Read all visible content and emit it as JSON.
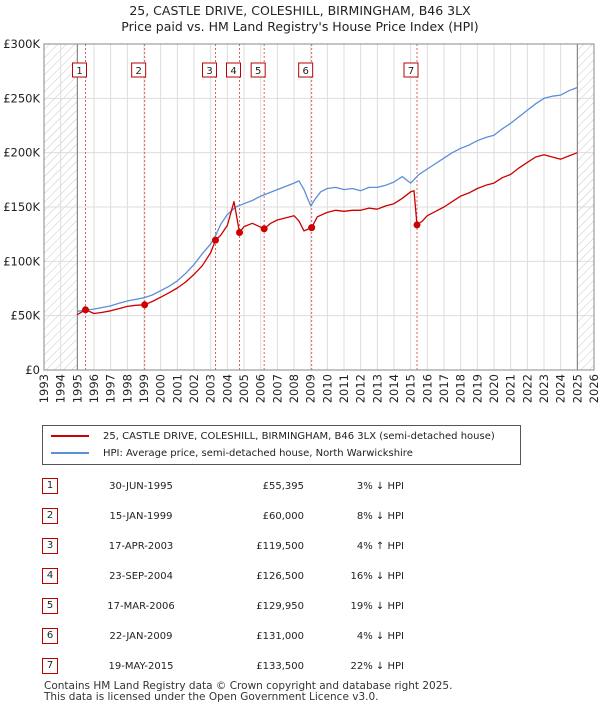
{
  "title_line1": "25, CASTLE DRIVE, COLESHILL, BIRMINGHAM, B46 3LX",
  "title_line2": "Price paid vs. HM Land Registry's House Price Index (HPI)",
  "legend": {
    "property": "25, CASTLE DRIVE, COLESHILL, BIRMINGHAM, B46 3LX (semi-detached house)",
    "hpi": "HPI: Average price, semi-detached house, North Warwickshire"
  },
  "colors": {
    "property": "#cc0000",
    "hpi": "#5b8fd6",
    "grid": "#dddddd",
    "shade": "#eef2f8"
  },
  "sales": [
    {
      "num": "1",
      "date": "30-JUN-1995",
      "price": "£55,395",
      "hpi": "3% ↓ HPI"
    },
    {
      "num": "2",
      "date": "15-JAN-1999",
      "price": "£60,000",
      "hpi": "8% ↓ HPI"
    },
    {
      "num": "3",
      "date": "17-APR-2003",
      "price": "£119,500",
      "hpi": "4% ↑ HPI"
    },
    {
      "num": "4",
      "date": "23-SEP-2004",
      "price": "£126,500",
      "hpi": "16% ↓ HPI"
    },
    {
      "num": "5",
      "date": "17-MAR-2006",
      "price": "£129,950",
      "hpi": "19% ↓ HPI"
    },
    {
      "num": "6",
      "date": "22-JAN-2009",
      "price": "£131,000",
      "hpi": "4% ↓ HPI"
    },
    {
      "num": "7",
      "date": "19-MAY-2015",
      "price": "£133,500",
      "hpi": "22% ↓ HPI"
    }
  ],
  "footer_line1": "Contains HM Land Registry data © Crown copyright and database right 2025.",
  "footer_line2": "This data is licensed under the Open Government Licence v3.0.",
  "chart_data": {
    "type": "line",
    "title": "Price paid vs. HM Land Registry's House Price Index (HPI)",
    "xlim": [
      1993,
      2026
    ],
    "ylim": [
      0,
      300000
    ],
    "x_ticks": [
      1993,
      1994,
      1995,
      1996,
      1997,
      1998,
      1999,
      2000,
      2001,
      2002,
      2003,
      2004,
      2005,
      2006,
      2007,
      2008,
      2009,
      2010,
      2011,
      2012,
      2013,
      2014,
      2015,
      2016,
      2017,
      2018,
      2019,
      2020,
      2021,
      2022,
      2023,
      2024,
      2025,
      2026
    ],
    "y_ticks": [
      0,
      50000,
      100000,
      150000,
      200000,
      250000,
      300000
    ],
    "y_tick_labels": [
      "£0",
      "£50K",
      "£100K",
      "£150K",
      "£200K",
      "£250K",
      "£300K"
    ],
    "shaded_before": 1995.0,
    "shaded_after": 2025.0,
    "series": [
      {
        "name": "HPI: Average price, semi-detached house, North Warwickshire",
        "color": "#5b8fd6",
        "x": [
          1995.0,
          1995.5,
          1996.0,
          1996.5,
          1997.0,
          1997.5,
          1998.0,
          1998.5,
          1999.0,
          1999.5,
          2000.0,
          2000.5,
          2001.0,
          2001.5,
          2002.0,
          2002.5,
          2003.0,
          2003.3,
          2003.6,
          2004.0,
          2004.5,
          2005.0,
          2005.5,
          2006.0,
          2006.5,
          2007.0,
          2007.5,
          2008.0,
          2008.3,
          2008.6,
          2009.0,
          2009.3,
          2009.6,
          2010.0,
          2010.5,
          2011.0,
          2011.5,
          2012.0,
          2012.5,
          2013.0,
          2013.5,
          2014.0,
          2014.5,
          2015.0,
          2015.5,
          2016.0,
          2016.5,
          2017.0,
          2017.5,
          2018.0,
          2018.5,
          2019.0,
          2019.5,
          2020.0,
          2020.5,
          2021.0,
          2021.5,
          2022.0,
          2022.5,
          2023.0,
          2023.5,
          2024.0,
          2024.5,
          2025.0
        ],
        "values": [
          54000,
          55000,
          56000,
          57500,
          59000,
          61500,
          63500,
          65000,
          66500,
          69000,
          73000,
          77000,
          82000,
          89000,
          97000,
          107000,
          116000,
          124000,
          134000,
          143000,
          150000,
          153000,
          156000,
          160000,
          163000,
          166000,
          169000,
          172000,
          174000,
          166000,
          151000,
          158000,
          164000,
          167000,
          168000,
          166000,
          167000,
          165000,
          168000,
          168000,
          170000,
          173000,
          178000,
          172000,
          180000,
          185000,
          190000,
          195000,
          200000,
          204000,
          207000,
          211000,
          214000,
          216000,
          222000,
          227000,
          233000,
          239000,
          245000,
          250000,
          252000,
          253000,
          257000,
          260000
        ]
      },
      {
        "name": "25, CASTLE DRIVE, COLESHILL, BIRMINGHAM, B46 3LX (semi-detached house)",
        "color": "#cc0000",
        "x": [
          1995.0,
          1995.5,
          1996.0,
          1996.5,
          1997.0,
          1997.5,
          1998.0,
          1998.5,
          1999.04,
          1999.5,
          2000.0,
          2000.5,
          2001.0,
          2001.5,
          2002.0,
          2002.5,
          2003.0,
          2003.29,
          2003.6,
          2004.0,
          2004.4,
          2004.73,
          2005.0,
          2005.5,
          2006.21,
          2006.6,
          2007.0,
          2007.5,
          2008.0,
          2008.3,
          2008.6,
          2009.06,
          2009.4,
          2010.0,
          2010.5,
          2011.0,
          2011.5,
          2012.0,
          2012.5,
          2013.0,
          2013.5,
          2014.0,
          2014.5,
          2015.0,
          2015.2,
          2015.38,
          2015.7,
          2016.0,
          2016.5,
          2017.0,
          2017.5,
          2018.0,
          2018.5,
          2019.0,
          2019.5,
          2020.0,
          2020.5,
          2021.0,
          2021.5,
          2022.0,
          2022.5,
          2023.0,
          2023.5,
          2024.0,
          2024.5,
          2025.0
        ],
        "values": [
          51000,
          55395,
          52000,
          53000,
          54500,
          56500,
          58500,
          59500,
          60000,
          63000,
          67000,
          71000,
          75500,
          81000,
          88000,
          96000,
          108000,
          119500,
          124000,
          133000,
          155000,
          126500,
          132000,
          135000,
          129950,
          135000,
          138000,
          140000,
          142000,
          137000,
          128000,
          131000,
          141000,
          145000,
          147000,
          146000,
          147000,
          147000,
          149000,
          148000,
          151000,
          153000,
          158000,
          164000,
          165000,
          133500,
          137000,
          142000,
          146000,
          150000,
          155000,
          160000,
          163000,
          167000,
          170000,
          172000,
          177000,
          180000,
          186000,
          191000,
          196000,
          198000,
          196000,
          194000,
          197000,
          200000
        ]
      }
    ],
    "sale_markers": [
      {
        "label": "1",
        "x": 1995.49,
        "y": 55395
      },
      {
        "label": "2",
        "x": 1999.04,
        "y": 60000
      },
      {
        "label": "3",
        "x": 2003.29,
        "y": 119500
      },
      {
        "label": "4",
        "x": 2004.73,
        "y": 126500
      },
      {
        "label": "5",
        "x": 2006.21,
        "y": 129950
      },
      {
        "label": "6",
        "x": 2009.06,
        "y": 131000
      },
      {
        "label": "7",
        "x": 2015.38,
        "y": 133500
      }
    ]
  }
}
